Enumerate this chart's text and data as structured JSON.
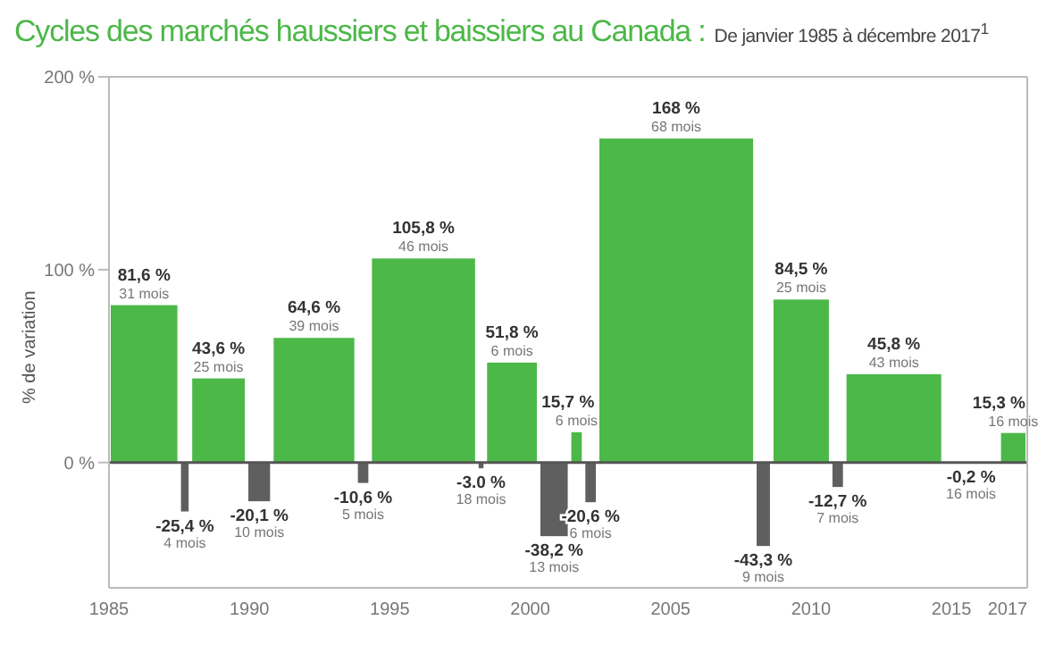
{
  "chart_data": {
    "type": "histogram",
    "title": "Cycles des marchés haussiers et baissiers au Canada :",
    "subtitle": "De janvier 1985 à décembre 2017$^{1}$",
    "ylabel": "% de variation",
    "bins": [
      1985,
      1987.5,
      1987.9,
      1989.9,
      1990.8,
      1993.8,
      1994.3,
      1998.1,
      1998.4,
      2000.3,
      2001.4,
      2001.9,
      2002.4,
      2008.0,
      2008.6,
      2010.7,
      2011.2,
      2014.7,
      2016.7,
      2017.7
    ],
    "values": [
      81.6,
      -25.4,
      43.6,
      -20.1,
      64.6,
      -10.6,
      105.8,
      -3.0,
      51.8,
      -38.2,
      15.7,
      -20.6,
      168,
      -43.3,
      84.5,
      -12.7,
      45.8,
      -0.2,
      15.3
    ],
    "colors": [
      "#4cb848",
      "#5f5f5f",
      "#4cb848",
      "#5f5f5f",
      "#4cb848",
      "#5f5f5f",
      "#4cb848",
      "#5f5f5f",
      "#4cb848",
      "#5f5f5f",
      "#4cb848",
      "#5f5f5f",
      "#4cb848",
      "#5f5f5f",
      "#4cb848",
      "#5f5f5f",
      "#4cb848",
      "#5f5f5f",
      "#4cb848"
    ],
    "value_labels": [
      "81,6 %",
      "-25,4 %",
      "43,6 %",
      "-20,1 %",
      "64,6 %",
      "-10,6 %",
      "105,8 %",
      "-3.0 %",
      "51,8 %",
      "-38,2 %",
      "15,7 %",
      "-20,6 %",
      "168 %",
      "-43,3 %",
      "84,5 %",
      "-12,7 %",
      "45,8 %",
      "-0,2 %",
      "15,3 %"
    ],
    "annotations": [
      {
        "text": "31 mois",
        "x": 1986.25,
        "y": 81.6
      },
      {
        "text": "4 mois",
        "x": 1987.7,
        "y": -25.4
      },
      {
        "text": "25 mois",
        "x": 1988.9,
        "y": 43.6
      },
      {
        "text": "10 mois",
        "x": 1990.35,
        "y": -20.1
      },
      {
        "text": "39 mois",
        "x": 1992.3,
        "y": 64.6
      },
      {
        "text": "5 mois",
        "x": 1994.05,
        "y": -10.6
      },
      {
        "text": "46 mois",
        "x": 1996.2,
        "y": 105.8
      },
      {
        "text": "18 mois",
        "x": 1998.25,
        "y": -3.0
      },
      {
        "text": "6 mois",
        "x": 1999.35,
        "y": 51.8
      },
      {
        "text": "13 mois",
        "x": 2000.85,
        "y": -38.2
      },
      {
        "text": "6 mois",
        "x": 2001.65,
        "y": 15.7
      },
      {
        "text": "6 mois",
        "x": 2002.15,
        "y": -20.6
      },
      {
        "text": "68 mois",
        "x": 2005.2,
        "y": 168
      },
      {
        "text": "9 mois",
        "x": 2008.3,
        "y": -43.3
      },
      {
        "text": "25 mois",
        "x": 2009.65,
        "y": 84.5
      },
      {
        "text": "7 mois",
        "x": 2010.95,
        "y": -12.7
      },
      {
        "text": "43 mois",
        "x": 2012.95,
        "y": 45.8
      },
      {
        "text": "16 mois",
        "x": 2015.7,
        "y": -0.2
      },
      {
        "text": "16 mois",
        "x": 2017.2,
        "y": 15.3
      }
    ],
    "xlim": [
      1985,
      2017.7
    ],
    "xticks": [
      1985,
      1990,
      1995,
      2000,
      2005,
      2010,
      2015,
      2017
    ],
    "ylim": [
      -65,
      200
    ],
    "yticks": [
      {
        "value": 0,
        "label": "0 %"
      },
      {
        "value": 100,
        "label": "100 %"
      },
      {
        "value": 200,
        "label": "200 %"
      }
    ],
    "ref_lines": [
      {
        "axis": "y",
        "value": 0,
        "color": "#555555"
      }
    ],
    "grid": false,
    "legend": false
  }
}
